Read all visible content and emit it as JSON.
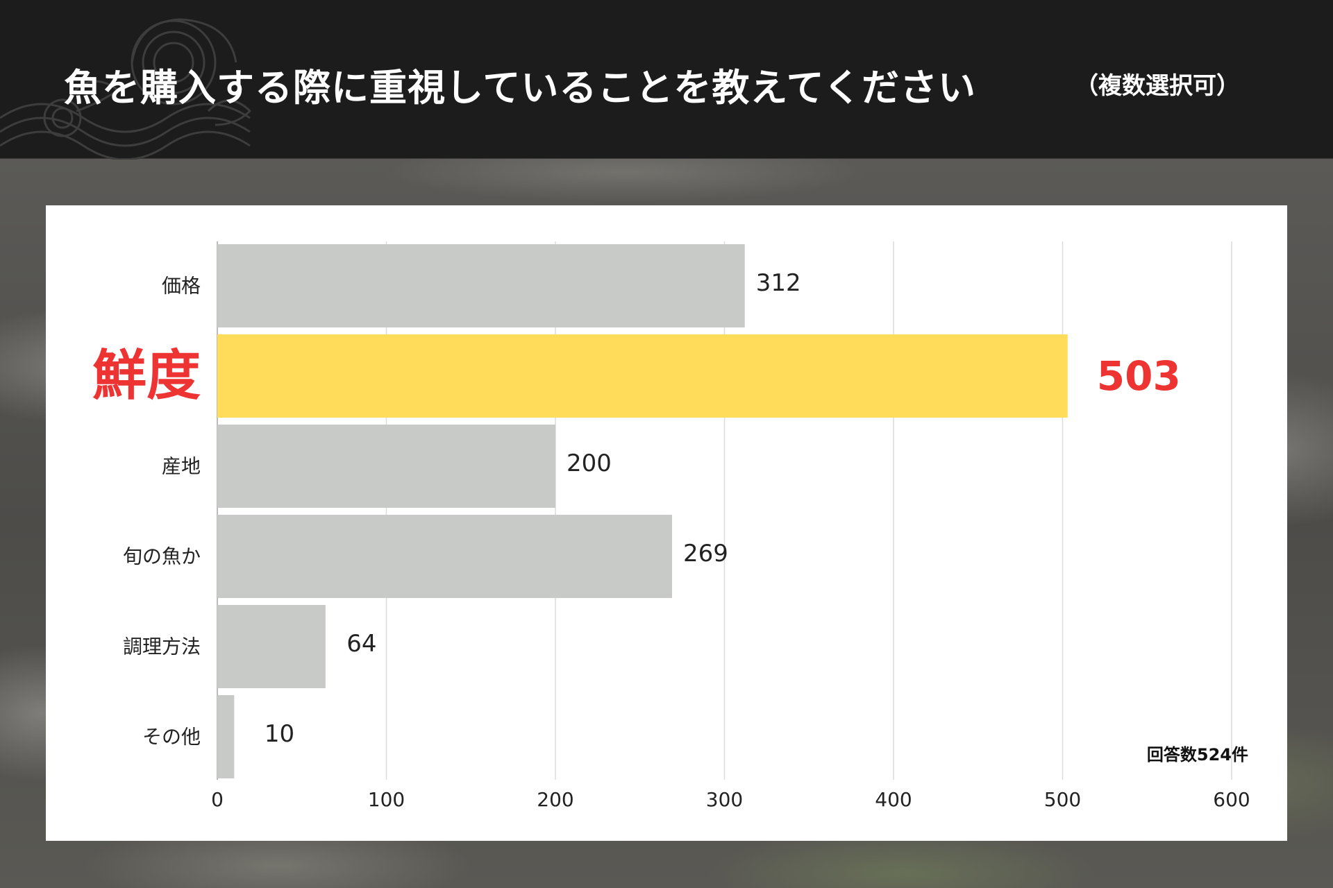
{
  "header": {
    "title": "魚を購入する際に重視していることを教えてください",
    "subtitle": "（複数選択可）"
  },
  "note": "回答数524件",
  "colors": {
    "bar": "#c8cac8",
    "highlight_bar": "#ffdc5a",
    "highlight_text": "#ee3333",
    "header_bg": "#1c1c1c"
  },
  "chart_data": {
    "type": "bar",
    "orientation": "horizontal",
    "categories": [
      "価格",
      "鮮度",
      "産地",
      "旬の魚か",
      "調理方法",
      "その他"
    ],
    "values": [
      312,
      503,
      200,
      269,
      64,
      10
    ],
    "highlight": "鮮度",
    "xlim": [
      0,
      600
    ],
    "xticks": [
      0,
      100,
      200,
      300,
      400,
      500,
      600
    ],
    "grid": "vertical",
    "title": "",
    "xlabel": "",
    "ylabel": ""
  }
}
